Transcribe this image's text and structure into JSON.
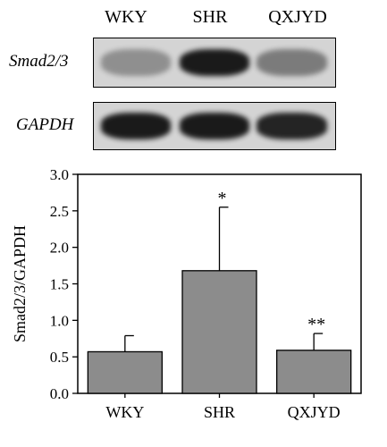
{
  "blot": {
    "lanes": [
      "WKY",
      "SHR",
      "QXJYD"
    ],
    "rows": [
      {
        "label": "Smad2/3",
        "band_darkness": [
          0.35,
          0.95,
          0.45
        ]
      },
      {
        "label": "GAPDH",
        "band_darkness": [
          0.95,
          0.95,
          0.9
        ]
      }
    ],
    "colors": {
      "band": "#111111",
      "background": "#d4d4d4"
    }
  },
  "chart_data": {
    "type": "bar",
    "categories": [
      "WKY",
      "SHR",
      "QXJYD"
    ],
    "values": [
      0.57,
      1.68,
      0.59
    ],
    "errors": [
      0.22,
      0.87,
      0.23
    ],
    "annotations": [
      "",
      "*",
      "**"
    ],
    "ylabel": "Smad2/3/GAPDH",
    "xlabel": "",
    "ylim": [
      0,
      3.0
    ],
    "yticks": [
      "0.0",
      "0.5",
      "1.0",
      "1.5",
      "2.0",
      "2.5",
      "3.0"
    ],
    "grid": false,
    "bar_color": "#8c8c8c"
  }
}
